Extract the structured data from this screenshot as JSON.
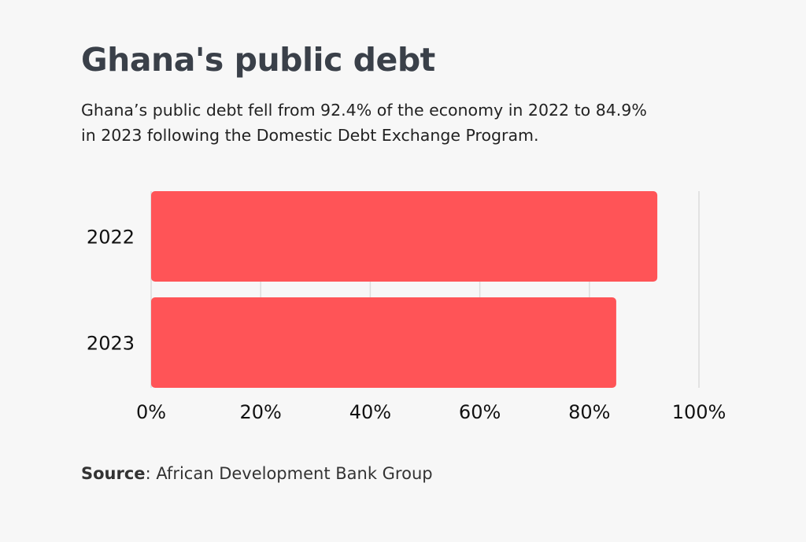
{
  "header": {
    "title": "Ghana's public debt",
    "subtitle": "Ghana’s public debt fell from 92.4% of the economy in 2022 to 84.9% in 2023 following the Domestic Debt Exchange Program."
  },
  "chart_data": {
    "type": "bar",
    "orientation": "horizontal",
    "categories": [
      "2022",
      "2023"
    ],
    "values": [
      92.4,
      84.9
    ],
    "xlim": [
      0,
      100
    ],
    "x_ticks": [
      "0%",
      "20%",
      "40%",
      "60%",
      "80%",
      "100%"
    ],
    "grid": true,
    "bar_color": "#ff5457",
    "grid_color": "#dcdcdc"
  },
  "footer": {
    "source_label": "Source",
    "source_text": ": African Development Bank Group"
  }
}
